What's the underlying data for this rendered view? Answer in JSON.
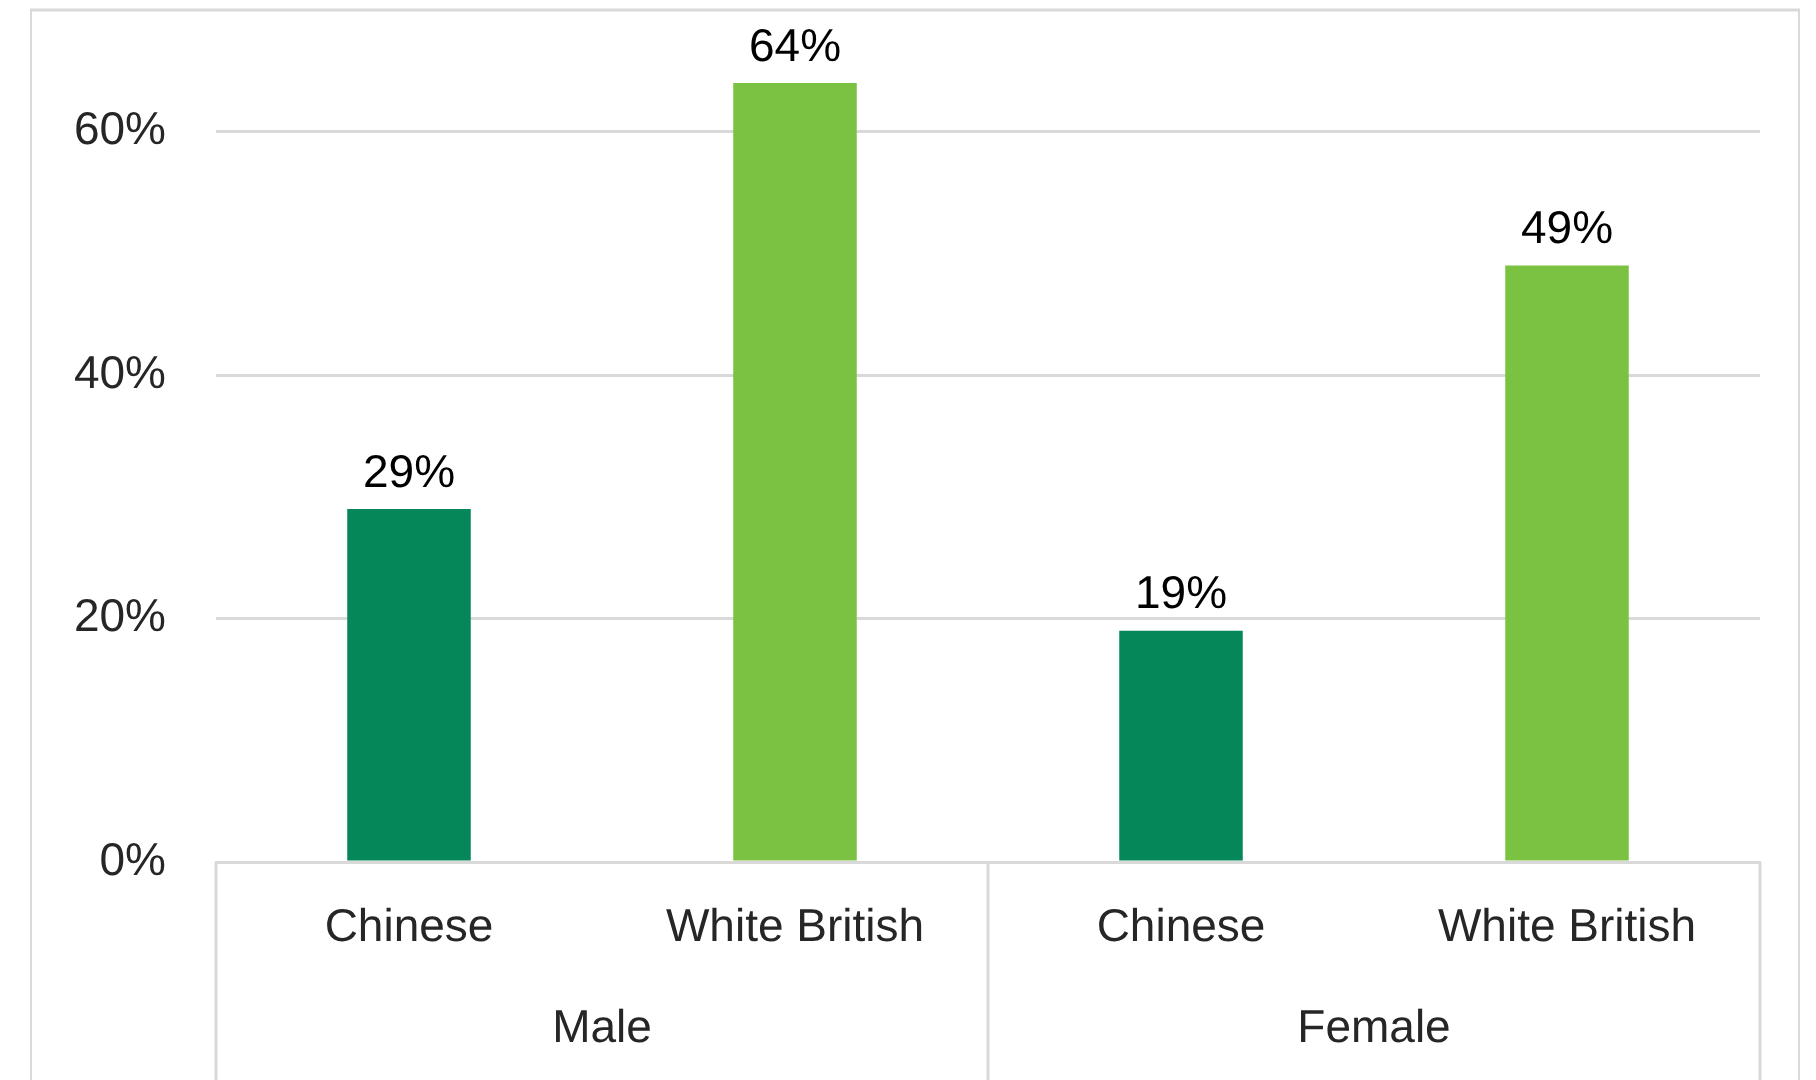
{
  "chart_data": {
    "type": "bar",
    "categories": [
      "Male",
      "Female"
    ],
    "series": [
      {
        "name": "Chinese",
        "color": "#06875a",
        "values": [
          29,
          19
        ],
        "value_labels": [
          "29%",
          "19%"
        ]
      },
      {
        "name": "White British",
        "color": "#7cc242",
        "values": [
          64,
          49
        ],
        "value_labels": [
          "64%",
          "49%"
        ]
      }
    ],
    "ylim": [
      0,
      70
    ],
    "yticks": [
      {
        "value": 0,
        "label": "0%"
      },
      {
        "value": 20,
        "label": "20%"
      },
      {
        "value": 40,
        "label": "40%"
      },
      {
        "value": 60,
        "label": "60%"
      }
    ],
    "grid": "y",
    "legend": false
  }
}
